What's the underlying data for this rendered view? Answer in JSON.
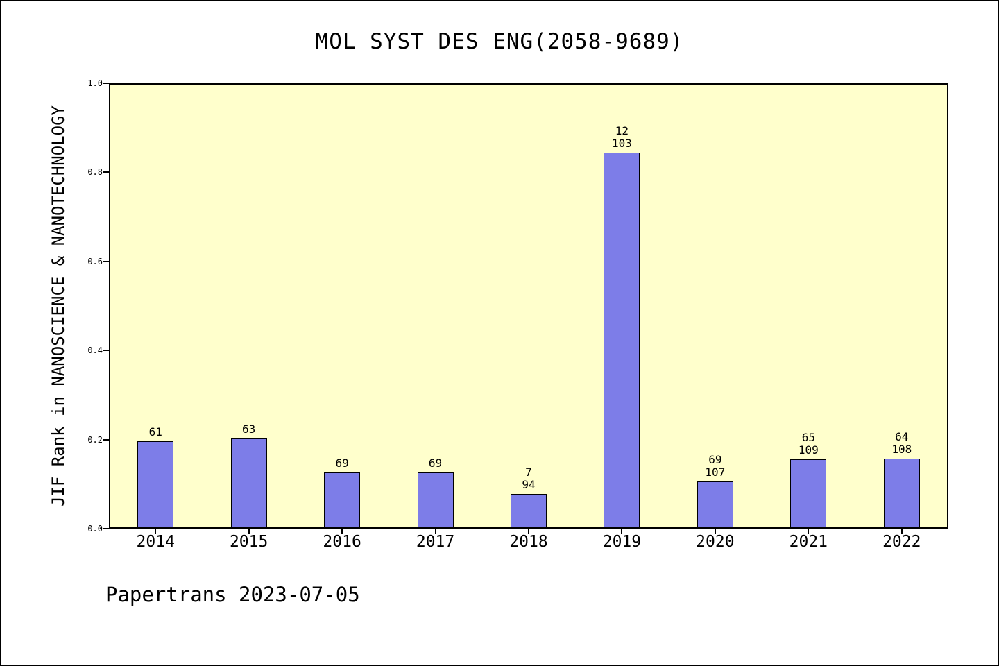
{
  "title": "MOL SYST DES ENG(2058-9689)",
  "footer": "Papertrans 2023-07-05",
  "chart_data": {
    "type": "bar",
    "title": "MOL SYST DES ENG(2058-9689)",
    "xlabel": "",
    "ylabel": "JIF Rank in NANOSCIENCE & NANOTECHNOLOGY",
    "categories": [
      "2014",
      "2015",
      "2016",
      "2017",
      "2018",
      "2019",
      "2020",
      "2021",
      "2022"
    ],
    "values": [
      0.197,
      0.202,
      0.126,
      0.126,
      0.078,
      0.844,
      0.106,
      0.156,
      0.157
    ],
    "bar_labels": [
      [
        "61"
      ],
      [
        "63"
      ],
      [
        "69"
      ],
      [
        "69"
      ],
      [
        "7",
        "94"
      ],
      [
        "12",
        "103"
      ],
      [
        "69",
        "107"
      ],
      [
        "65",
        "109"
      ],
      [
        "64",
        "108"
      ]
    ],
    "ylim": [
      0.0,
      1.0
    ],
    "yticks": [
      0.0,
      0.2,
      0.4,
      0.6,
      0.8,
      1.0
    ],
    "ytick_labels": [
      "0.0",
      "0.2",
      "0.4",
      "0.6",
      "0.8",
      "1.0"
    ],
    "grid": false,
    "legend": null,
    "colors": {
      "bar_fill": "#7d7de8",
      "bar_border": "#000000",
      "plot_background": "#ffffcc",
      "page_background": "#ffffff",
      "text": "#000000"
    }
  }
}
